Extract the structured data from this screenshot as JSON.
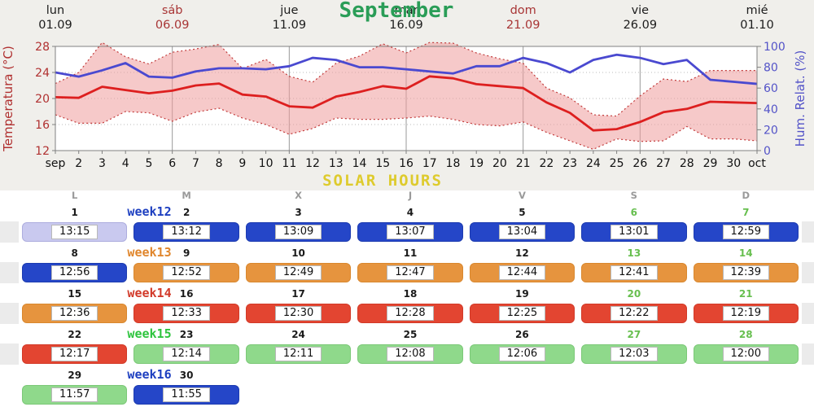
{
  "chart_data": {
    "type": "line",
    "title": "September",
    "x_tick_labels": [
      "sep",
      "2",
      "3",
      "4",
      "5",
      "6",
      "7",
      "8",
      "9",
      "10",
      "11",
      "12",
      "13",
      "14",
      "15",
      "16",
      "17",
      "18",
      "19",
      "20",
      "21",
      "22",
      "23",
      "24",
      "25",
      "26",
      "27",
      "28",
      "29",
      "30",
      "oct"
    ],
    "left_axis": {
      "label": "Temperatura (°C)",
      "range": [
        12,
        28
      ],
      "ticks": [
        12,
        16,
        20,
        24,
        28
      ],
      "color": "#b03030"
    },
    "right_axis": {
      "label": "Hum. Relat. (%)",
      "range": [
        0,
        100
      ],
      "ticks": [
        0,
        20,
        40,
        60,
        80,
        100
      ],
      "color": "#5353c8"
    },
    "date_headers": [
      {
        "dow": "lun",
        "date": "01.09",
        "day": 1,
        "red": false
      },
      {
        "dow": "sáb",
        "date": "06.09",
        "day": 6,
        "red": true
      },
      {
        "dow": "jue",
        "date": "11.09",
        "day": 11,
        "red": false
      },
      {
        "dow": "mar",
        "date": "16.09",
        "day": 16,
        "red": false
      },
      {
        "dow": "dom",
        "date": "21.09",
        "day": 21,
        "red": true
      },
      {
        "dow": "vie",
        "date": "26.09",
        "day": 26,
        "red": false
      },
      {
        "dow": "mié",
        "date": "01.10",
        "day": 31,
        "red": false
      }
    ],
    "vgrid_days": [
      6,
      11,
      16,
      21,
      26
    ],
    "hgrid_temps": [
      16,
      20,
      24
    ],
    "temperature_mean": [
      20.2,
      20.1,
      21.8,
      21.3,
      20.8,
      21.2,
      22.0,
      22.3,
      20.6,
      20.3,
      18.8,
      18.6,
      20.3,
      21.0,
      21.9,
      21.5,
      23.4,
      23.1,
      22.2,
      21.9,
      21.6,
      19.4,
      17.8,
      15.1,
      15.3,
      16.4,
      17.9,
      18.4,
      19.5,
      19.4,
      19.3
    ],
    "temperature_band_max": [
      22.3,
      24.0,
      28.6,
      26.4,
      25.3,
      27.1,
      27.6,
      28.3,
      24.6,
      26.0,
      23.4,
      22.5,
      25.4,
      26.5,
      28.4,
      27.0,
      28.6,
      28.5,
      27.0,
      26.1,
      25.4,
      21.6,
      20.1,
      17.5,
      17.3,
      20.4,
      23.0,
      22.6,
      24.3,
      24.3,
      24.3
    ],
    "temperature_band_min": [
      17.5,
      16.2,
      16.2,
      18.0,
      17.8,
      16.5,
      17.9,
      18.5,
      17.0,
      16.0,
      14.5,
      15.4,
      17.0,
      16.8,
      16.8,
      17.0,
      17.3,
      16.8,
      16.0,
      15.8,
      16.4,
      14.8,
      13.5,
      12.2,
      13.8,
      13.4,
      13.5,
      15.7,
      13.8,
      13.8,
      13.5
    ],
    "humidity": [
      75,
      71,
      77,
      84,
      71,
      70,
      76,
      79,
      79,
      78,
      81,
      89,
      87,
      80,
      80,
      78,
      76,
      74,
      81,
      81,
      89,
      84,
      75,
      87,
      92,
      89,
      83,
      87,
      68,
      66,
      64
    ],
    "colors": {
      "title": "#2a9d57",
      "temp_line": "#dd1f1f",
      "humidity_line": "#4a49d0",
      "band_fill": "#ee9c9c",
      "band_edge": "#c23b3b",
      "date_black": "#1c1c1c",
      "date_red": "#a83535",
      "xtick": "#111111",
      "grid_v": "#999999",
      "grid_h": "#bbbbbb",
      "border": "#808080"
    }
  },
  "calendar": {
    "title": "SOLAR HOURS",
    "title_color": "#decb2d",
    "day_headers": [
      "L",
      "M",
      "X",
      "J",
      "V",
      "S",
      "D"
    ],
    "weekend_number_color": "#67bf4f",
    "bar_colors": {
      "lavender": {
        "bg": "#c9c9ef",
        "border": "#adadde"
      },
      "blue": {
        "bg": "#2546c8",
        "border": "#1d3cb0"
      },
      "orange": {
        "bg": "#e6943e",
        "border": "#d9882f"
      },
      "red": {
        "bg": "#e34531",
        "border": "#d23a28"
      },
      "green": {
        "bg": "#8fd98b",
        "border": "#7cc878"
      }
    },
    "weeks": [
      {
        "label": "week12",
        "label_color": "#1d3fc0",
        "full": true,
        "days": [
          {
            "num": "1",
            "time": "13:15",
            "color": "lavender"
          },
          {
            "num": "2",
            "time": "13:12",
            "color": "blue"
          },
          {
            "num": "3",
            "time": "13:09",
            "color": "blue"
          },
          {
            "num": "4",
            "time": "13:07",
            "color": "blue"
          },
          {
            "num": "5",
            "time": "13:04",
            "color": "blue"
          },
          {
            "num": "6",
            "time": "13:01",
            "color": "blue"
          },
          {
            "num": "7",
            "time": "12:59",
            "color": "blue"
          }
        ]
      },
      {
        "label": "week13",
        "label_color": "#e0862c",
        "full": true,
        "days": [
          {
            "num": "8",
            "time": "12:56",
            "color": "blue"
          },
          {
            "num": "9",
            "time": "12:52",
            "color": "orange"
          },
          {
            "num": "10",
            "time": "12:49",
            "color": "orange"
          },
          {
            "num": "11",
            "time": "12:47",
            "color": "orange"
          },
          {
            "num": "12",
            "time": "12:44",
            "color": "orange"
          },
          {
            "num": "13",
            "time": "12:41",
            "color": "orange"
          },
          {
            "num": "14",
            "time": "12:39",
            "color": "orange"
          }
        ]
      },
      {
        "label": "week14",
        "label_color": "#d23a2a",
        "full": true,
        "days": [
          {
            "num": "15",
            "time": "12:36",
            "color": "orange"
          },
          {
            "num": "16",
            "time": "12:33",
            "color": "red"
          },
          {
            "num": "17",
            "time": "12:30",
            "color": "red"
          },
          {
            "num": "18",
            "time": "12:28",
            "color": "red"
          },
          {
            "num": "19",
            "time": "12:25",
            "color": "red"
          },
          {
            "num": "20",
            "time": "12:22",
            "color": "red"
          },
          {
            "num": "21",
            "time": "12:19",
            "color": "red"
          }
        ]
      },
      {
        "label": "week15",
        "label_color": "#2ec43e",
        "full": true,
        "days": [
          {
            "num": "22",
            "time": "12:17",
            "color": "red"
          },
          {
            "num": "23",
            "time": "12:14",
            "color": "green"
          },
          {
            "num": "24",
            "time": "12:11",
            "color": "green"
          },
          {
            "num": "25",
            "time": "12:08",
            "color": "green"
          },
          {
            "num": "26",
            "time": "12:06",
            "color": "green"
          },
          {
            "num": "27",
            "time": "12:03",
            "color": "green"
          },
          {
            "num": "28",
            "time": "12:00",
            "color": "green"
          }
        ]
      },
      {
        "label": "week16",
        "label_color": "#1d3fc0",
        "full": false,
        "days": [
          {
            "num": "29",
            "time": "11:57",
            "color": "green"
          },
          {
            "num": "30",
            "time": "11:55",
            "color": "blue"
          },
          null,
          null,
          null,
          null,
          null
        ]
      }
    ]
  }
}
